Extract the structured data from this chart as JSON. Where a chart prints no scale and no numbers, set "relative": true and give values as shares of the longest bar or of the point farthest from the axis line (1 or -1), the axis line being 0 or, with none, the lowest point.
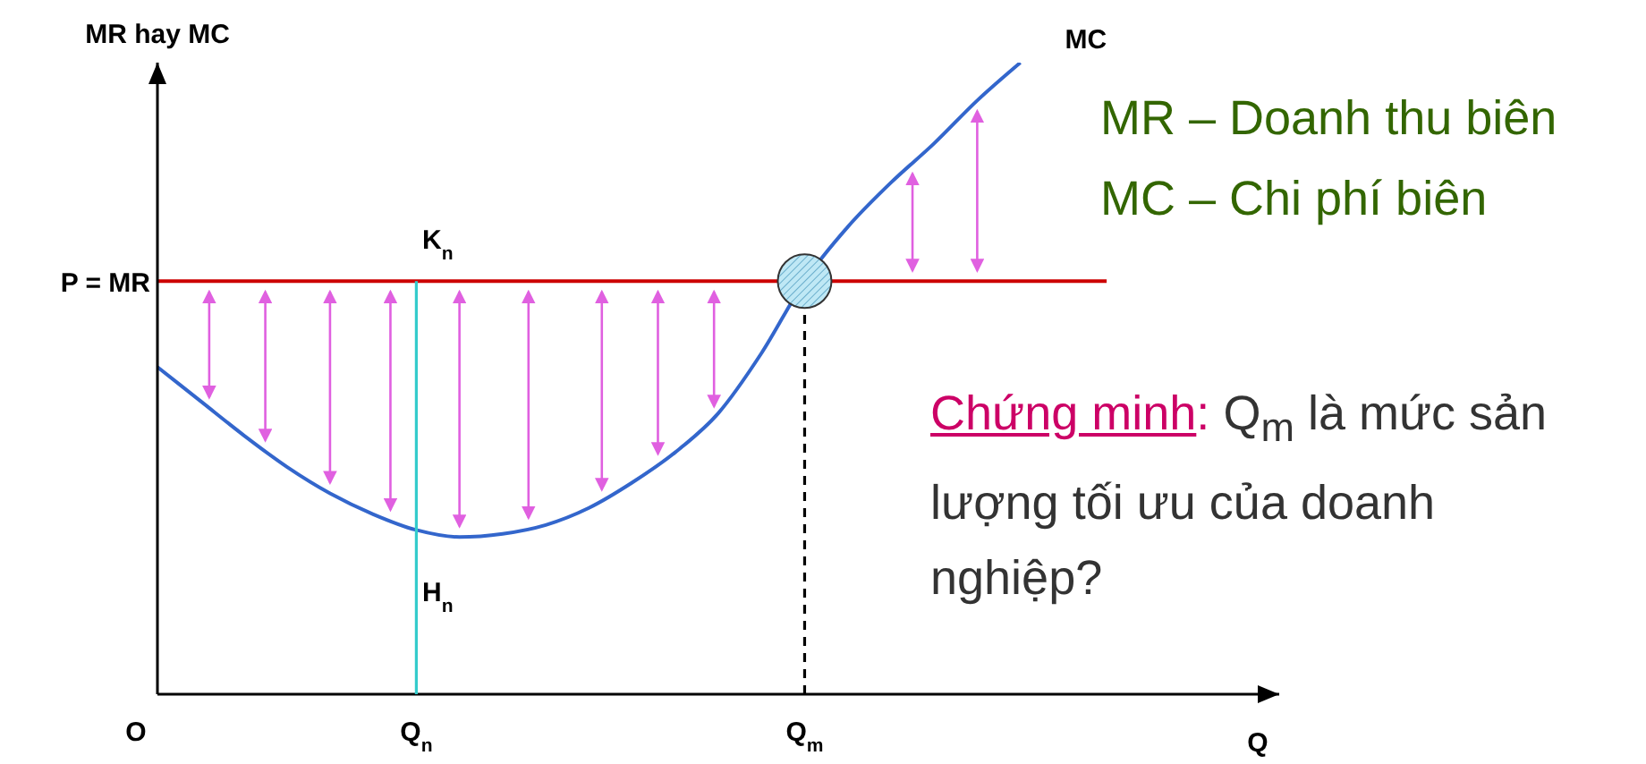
{
  "chart_data": {
    "type": "line",
    "relative": true,
    "ylabel": "MR hay MC",
    "xlabel": "Q",
    "marker": "none",
    "line_style": "solid",
    "categories": [
      "O",
      null,
      null,
      null,
      null,
      null,
      "Q$_{n}$",
      null,
      null,
      null,
      null,
      null,
      null,
      null,
      null,
      "Q$_{m}$",
      null,
      null,
      null,
      null,
      null,
      null,
      null,
      null,
      null,
      null,
      null
    ],
    "series": [
      {
        "name": "P = MR",
        "color": "#cc0000",
        "values": [
          0.654,
          0.654,
          0.654,
          0.654,
          0.654,
          0.654,
          0.654,
          0.654,
          0.654,
          0.654,
          0.654,
          0.654,
          0.654,
          0.654,
          0.654,
          0.654,
          0.654,
          0.654,
          0.654,
          0.654,
          0.654,
          0.654,
          0.654,
          null,
          null,
          null,
          null
        ]
      },
      {
        "name": "MC",
        "color": "#3366cc",
        "values": [
          0.518,
          0.464,
          0.41,
          0.36,
          0.318,
          0.285,
          0.26,
          0.249,
          0.254,
          0.268,
          0.295,
          0.335,
          0.383,
          0.445,
          0.54,
          0.654,
          0.74,
          0.81,
          0.872,
          0.94,
          1,
          null,
          null,
          null,
          null,
          null,
          null
        ]
      }
    ],
    "ref_lines": [
      {
        "axis": "x",
        "value": "Q$_{n}$",
        "color": "#33cccc",
        "line_style": "solid"
      },
      {
        "axis": "x",
        "value": "Q$_{m}$",
        "color": "#000000",
        "line_style": "dashed"
      }
    ],
    "annotations": [
      {
        "text": "K$_{n}$",
        "x": "Q$_{n}$",
        "y": 0.654
      },
      {
        "text": "H$_{n}$",
        "x": "Q$_{n}$",
        "y": 0.26
      },
      "MR – Doanh thu biên",
      "MC – Chi phí biên",
      "Chứng minh: Q$_{m}$ là mức sản lượng tối ưu của doanh nghiệp?"
    ]
  }
}
